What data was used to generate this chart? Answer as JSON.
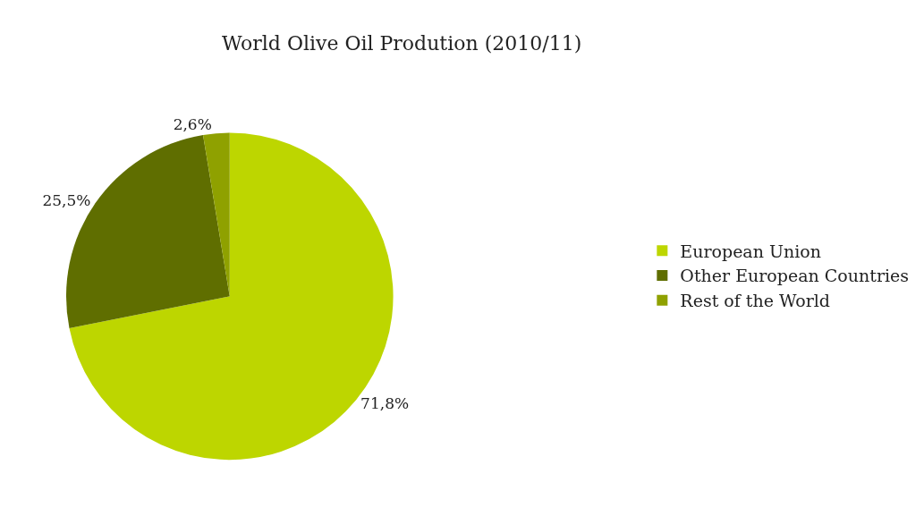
{
  "chart_data": {
    "type": "pie",
    "title": "World Olive Oil Prodution (2010/11)",
    "categories": [
      "European Union",
      "Other European Countries",
      "Rest of the World"
    ],
    "values": [
      71.8,
      25.5,
      2.6
    ],
    "value_labels": [
      "71,8%",
      "25,5%",
      "2,6%"
    ],
    "colors": [
      "#bdd600",
      "#5f6e00",
      "#8fa100"
    ],
    "legend": "right"
  }
}
